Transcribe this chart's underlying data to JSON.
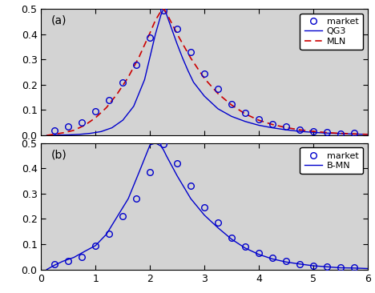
{
  "market_x": [
    0.25,
    0.5,
    0.75,
    1.0,
    1.25,
    1.5,
    1.75,
    2.0,
    2.25,
    2.5,
    2.75,
    3.0,
    3.25,
    3.5,
    3.75,
    4.0,
    4.25,
    4.5,
    4.75,
    5.0,
    5.25,
    5.5,
    5.75
  ],
  "market_y": [
    0.02,
    0.035,
    0.05,
    0.095,
    0.14,
    0.21,
    0.28,
    0.385,
    0.495,
    0.42,
    0.33,
    0.245,
    0.185,
    0.125,
    0.09,
    0.065,
    0.045,
    0.035,
    0.022,
    0.016,
    0.012,
    0.008,
    0.01
  ],
  "qg3_x_dense": [
    0.1,
    0.3,
    0.5,
    0.7,
    0.9,
    1.1,
    1.3,
    1.5,
    1.7,
    1.9,
    2.0,
    2.1,
    2.2,
    2.25,
    2.3,
    2.4,
    2.5,
    2.6,
    2.7,
    2.8,
    3.0,
    3.25,
    3.5,
    3.75,
    4.0,
    4.25,
    4.5,
    4.75,
    5.0,
    5.25,
    5.5,
    5.75,
    6.0
  ],
  "qg3_y_dense": [
    0.0,
    0.001,
    0.002,
    0.004,
    0.008,
    0.015,
    0.03,
    0.06,
    0.115,
    0.22,
    0.31,
    0.4,
    0.475,
    0.5,
    0.48,
    0.42,
    0.36,
    0.305,
    0.255,
    0.21,
    0.155,
    0.105,
    0.075,
    0.055,
    0.04,
    0.03,
    0.022,
    0.016,
    0.012,
    0.009,
    0.007,
    0.005,
    0.004
  ],
  "mln_x_dense": [
    0.1,
    0.25,
    0.4,
    0.6,
    0.8,
    1.0,
    1.2,
    1.4,
    1.6,
    1.8,
    2.0,
    2.1,
    2.2,
    2.25,
    2.3,
    2.5,
    2.75,
    3.0,
    3.25,
    3.5,
    3.75,
    4.0,
    4.25,
    4.5,
    4.75,
    5.0,
    5.25,
    5.5,
    5.75,
    6.0
  ],
  "mln_y_dense": [
    0.0,
    0.005,
    0.01,
    0.02,
    0.04,
    0.07,
    0.11,
    0.165,
    0.23,
    0.31,
    0.405,
    0.455,
    0.49,
    0.5,
    0.485,
    0.4,
    0.305,
    0.225,
    0.165,
    0.12,
    0.085,
    0.06,
    0.043,
    0.031,
    0.022,
    0.016,
    0.011,
    0.008,
    0.006,
    0.004
  ],
  "bmn_x_dense": [
    0.1,
    0.25,
    0.4,
    0.6,
    0.8,
    1.0,
    1.2,
    1.4,
    1.6,
    1.8,
    2.0,
    2.1,
    2.2,
    2.25,
    2.3,
    2.5,
    2.75,
    3.0,
    3.25,
    3.5,
    3.75,
    4.0,
    4.25,
    4.5,
    4.75,
    5.0,
    5.25,
    5.5,
    5.75,
    6.0
  ],
  "bmn_y_dense": [
    0.0,
    0.018,
    0.033,
    0.048,
    0.072,
    0.095,
    0.14,
    0.21,
    0.28,
    0.385,
    0.492,
    0.5,
    0.488,
    0.472,
    0.45,
    0.37,
    0.28,
    0.215,
    0.165,
    0.12,
    0.085,
    0.06,
    0.042,
    0.03,
    0.022,
    0.015,
    0.011,
    0.007,
    0.006,
    0.004
  ],
  "market_x_b": [
    0.25,
    0.5,
    0.75,
    1.0,
    1.25,
    1.5,
    1.75,
    2.0,
    2.25,
    2.5,
    2.75,
    3.0,
    3.25,
    3.5,
    3.75,
    4.0,
    4.25,
    4.5,
    4.75,
    5.0,
    5.25,
    5.5,
    5.75
  ],
  "market_y_b": [
    0.02,
    0.035,
    0.05,
    0.095,
    0.14,
    0.21,
    0.28,
    0.385,
    0.495,
    0.42,
    0.33,
    0.245,
    0.185,
    0.125,
    0.09,
    0.065,
    0.045,
    0.035,
    0.022,
    0.016,
    0.012,
    0.008,
    0.01
  ],
  "xlim": [
    0,
    6
  ],
  "ylim": [
    0,
    0.5
  ],
  "yticks": [
    0.0,
    0.1,
    0.2,
    0.3,
    0.4,
    0.5
  ],
  "xticks": [
    0,
    1,
    2,
    3,
    4,
    5,
    6
  ],
  "market_color": "#0000cc",
  "qg3_color": "#0000cc",
  "mln_color": "#cc0000",
  "bmn_color": "#0000cc",
  "bg_color": "#d3d3d3",
  "label_a": "(a)",
  "label_b": "(b)",
  "legend_a": [
    "market",
    "QG3",
    "MLN"
  ],
  "legend_b": [
    "market",
    "B-MN"
  ]
}
